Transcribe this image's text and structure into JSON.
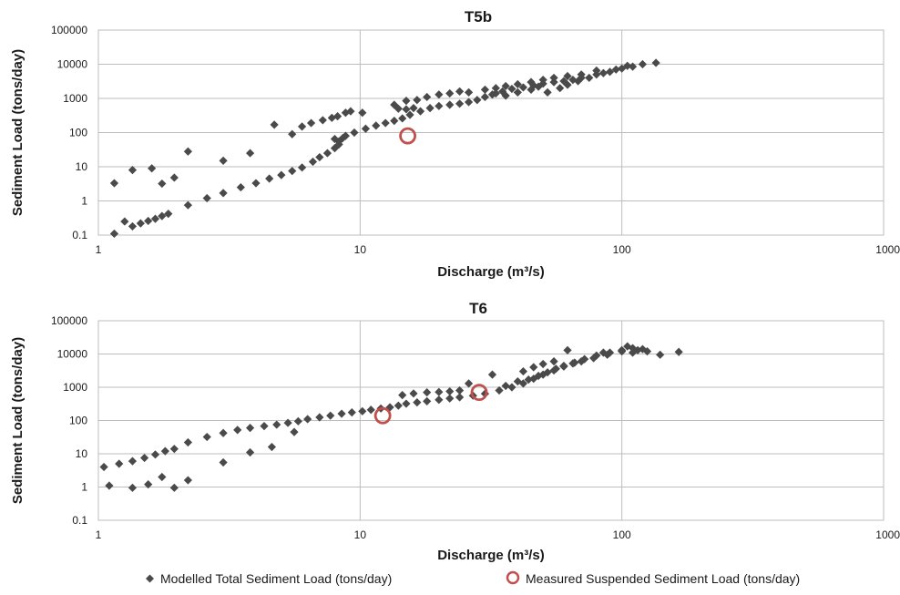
{
  "legend": {
    "modelled_label": "Modelled Total Sediment Load (tons/day)",
    "measured_label": "Measured Suspended Sediment Load (tons/day)"
  },
  "colors": {
    "modelled": "#4a4a4a",
    "measured": "#c0504d",
    "grid": "#bdbdbd"
  },
  "chart_data": [
    {
      "type": "scatter",
      "title": "T5b",
      "xlabel": "Discharge (m³/s)",
      "ylabel": "Sediment Load (tons/day)",
      "x_scale": "log",
      "y_scale": "log",
      "xlim": [
        1,
        1000
      ],
      "ylim": [
        0.1,
        100000
      ],
      "x_ticks": [
        "1",
        "10",
        "100",
        "1000"
      ],
      "y_ticks": [
        "0.1",
        "1",
        "10",
        "100",
        "1000",
        "10000",
        "100000"
      ],
      "grid": true,
      "legend_position": "bottom",
      "series": [
        {
          "name": "Modelled Total Sediment Load (tons/day)",
          "marker": "diamond",
          "points": [
            [
              1.15,
              0.11
            ],
            [
              1.26,
              0.25
            ],
            [
              1.35,
              0.18
            ],
            [
              1.45,
              0.22
            ],
            [
              1.55,
              0.26
            ],
            [
              1.65,
              0.3
            ],
            [
              1.75,
              0.36
            ],
            [
              1.85,
              0.42
            ],
            [
              2.2,
              0.75
            ],
            [
              2.6,
              1.2
            ],
            [
              3.0,
              1.7
            ],
            [
              3.5,
              2.5
            ],
            [
              4.0,
              3.3
            ],
            [
              4.5,
              4.5
            ],
            [
              5.0,
              5.7
            ],
            [
              5.5,
              7.5
            ],
            [
              6.0,
              9.5
            ],
            [
              6.6,
              14
            ],
            [
              7.0,
              19
            ],
            [
              7.5,
              25
            ],
            [
              8.0,
              35
            ],
            [
              8.3,
              55
            ],
            [
              8.8,
              80
            ],
            [
              9.5,
              100
            ],
            [
              10.5,
              130
            ],
            [
              11.5,
              160
            ],
            [
              12.5,
              190
            ],
            [
              13.5,
              220
            ],
            [
              14.5,
              260
            ],
            [
              15.5,
              330
            ],
            [
              17,
              420
            ],
            [
              18.5,
              520
            ],
            [
              20,
              600
            ],
            [
              22,
              650
            ],
            [
              24,
              700
            ],
            [
              26,
              780
            ],
            [
              28,
              900
            ],
            [
              30,
              1100
            ],
            [
              32,
              1300
            ],
            [
              35,
              1600
            ],
            [
              38,
              1900
            ],
            [
              42,
              2100
            ],
            [
              46,
              2400
            ],
            [
              50,
              2700
            ],
            [
              55,
              3000
            ],
            [
              60,
              3200
            ],
            [
              65,
              3500
            ],
            [
              70,
              4000
            ],
            [
              80,
              5000
            ],
            [
              90,
              6000
            ],
            [
              100,
              7500
            ],
            [
              110,
              8500
            ],
            [
              120,
              10000
            ],
            [
              135,
              11000
            ],
            [
              1.15,
              3.3
            ],
            [
              1.35,
              8
            ],
            [
              1.6,
              9
            ],
            [
              1.75,
              3.2
            ],
            [
              1.95,
              4.8
            ],
            [
              2.2,
              28
            ],
            [
              3.0,
              15
            ],
            [
              3.8,
              25
            ],
            [
              4.7,
              170
            ],
            [
              5.5,
              90
            ],
            [
              6.0,
              150
            ],
            [
              6.5,
              190
            ],
            [
              7.2,
              230
            ],
            [
              7.8,
              270
            ],
            [
              8.2,
              300
            ],
            [
              8.8,
              380
            ],
            [
              9.2,
              420
            ],
            [
              10.2,
              380
            ],
            [
              13.5,
              650
            ],
            [
              15,
              850
            ],
            [
              16.5,
              900
            ],
            [
              18,
              1100
            ],
            [
              20,
              1300
            ],
            [
              22,
              1400
            ],
            [
              24,
              1600
            ],
            [
              26,
              1500
            ],
            [
              30,
              1800
            ],
            [
              33,
              2000
            ],
            [
              36,
              2300
            ],
            [
              40,
              2600
            ],
            [
              45,
              3000
            ],
            [
              50,
              3500
            ],
            [
              55,
              4000
            ],
            [
              62,
              4500
            ],
            [
              70,
              5000
            ],
            [
              80,
              6500
            ],
            [
              95,
              7000
            ],
            [
              8,
              65
            ],
            [
              8.3,
              45
            ],
            [
              8.6,
              70
            ],
            [
              14,
              500
            ],
            [
              15,
              480
            ],
            [
              16,
              520
            ],
            [
              33,
              1400
            ],
            [
              36,
              1200
            ],
            [
              40,
              1500
            ],
            [
              45,
              1800
            ],
            [
              48,
              2200
            ],
            [
              52,
              1500
            ],
            [
              58,
              2000
            ],
            [
              62,
              2500
            ],
            [
              68,
              3200
            ],
            [
              75,
              4000
            ],
            [
              85,
              5500
            ],
            [
              105,
              9000
            ]
          ]
        },
        {
          "name": "Measured Suspended Sediment Load (tons/day)",
          "marker": "circle",
          "points": [
            [
              15.2,
              80
            ]
          ]
        }
      ]
    },
    {
      "type": "scatter",
      "title": "T6",
      "xlabel": "Discharge (m³/s)",
      "ylabel": "Sediment Load (tons/day)",
      "x_scale": "log",
      "y_scale": "log",
      "xlim": [
        1,
        1000
      ],
      "ylim": [
        0.1,
        100000
      ],
      "x_ticks": [
        "1",
        "10",
        "100",
        "1000"
      ],
      "y_ticks": [
        "0.1",
        "1",
        "10",
        "100",
        "1000",
        "10000",
        "100000"
      ],
      "grid": true,
      "legend_position": "bottom",
      "series": [
        {
          "name": "Modelled Total Sediment Load (tons/day)",
          "marker": "diamond",
          "points": [
            [
              1.05,
              4
            ],
            [
              1.2,
              5
            ],
            [
              1.35,
              6
            ],
            [
              1.5,
              7.5
            ],
            [
              1.65,
              9.5
            ],
            [
              1.8,
              12
            ],
            [
              1.95,
              14
            ],
            [
              2.2,
              22
            ],
            [
              2.6,
              32
            ],
            [
              3.0,
              42
            ],
            [
              3.4,
              52
            ],
            [
              3.8,
              60
            ],
            [
              4.3,
              68
            ],
            [
              4.8,
              75
            ],
            [
              5.3,
              85
            ],
            [
              5.8,
              95
            ],
            [
              6.3,
              110
            ],
            [
              7.0,
              125
            ],
            [
              7.7,
              140
            ],
            [
              8.5,
              160
            ],
            [
              9.3,
              175
            ],
            [
              10.2,
              190
            ],
            [
              11,
              210
            ],
            [
              12,
              230
            ],
            [
              13,
              250
            ],
            [
              14,
              280
            ],
            [
              15,
              320
            ],
            [
              16.5,
              350
            ],
            [
              18,
              380
            ],
            [
              20,
              420
            ],
            [
              22,
              460
            ],
            [
              24,
              500
            ],
            [
              27,
              560
            ],
            [
              30,
              640
            ],
            [
              34,
              800
            ],
            [
              38,
              1000
            ],
            [
              42,
              1300
            ],
            [
              46,
              1800
            ],
            [
              50,
              2400
            ],
            [
              55,
              3200
            ],
            [
              60,
              4200
            ],
            [
              66,
              5500
            ],
            [
              72,
              7000
            ],
            [
              80,
              9000
            ],
            [
              90,
              11000
            ],
            [
              100,
              13000
            ],
            [
              110,
              15000
            ],
            [
              120,
              14000
            ],
            [
              1.1,
              1.1
            ],
            [
              1.35,
              0.95
            ],
            [
              1.55,
              1.2
            ],
            [
              1.75,
              2
            ],
            [
              1.95,
              0.95
            ],
            [
              2.2,
              1.6
            ],
            [
              3.0,
              5.5
            ],
            [
              3.8,
              11
            ],
            [
              4.6,
              16
            ],
            [
              5.6,
              45
            ],
            [
              14.5,
              580
            ],
            [
              16,
              650
            ],
            [
              18,
              700
            ],
            [
              20,
              720
            ],
            [
              22,
              750
            ],
            [
              24,
              800
            ],
            [
              26,
              1300
            ],
            [
              32,
              2400
            ],
            [
              36,
              1100
            ],
            [
              40,
              1500
            ],
            [
              44,
              1700
            ],
            [
              48,
              2200
            ],
            [
              52,
              2800
            ],
            [
              56,
              3600
            ],
            [
              60,
              4400
            ],
            [
              65,
              5200
            ],
            [
              70,
              6000
            ],
            [
              78,
              7500
            ],
            [
              88,
              9500
            ],
            [
              100,
              12000
            ],
            [
              110,
              11000
            ],
            [
              125,
              12000
            ],
            [
              140,
              9500
            ],
            [
              165,
              11500
            ],
            [
              42,
              3000
            ],
            [
              46,
              4000
            ],
            [
              50,
              5000
            ],
            [
              55,
              6000
            ],
            [
              62,
              13000
            ],
            [
              85,
              11000
            ],
            [
              105,
              17000
            ],
            [
              115,
              13000
            ]
          ]
        },
        {
          "name": "Measured Suspended Sediment Load (tons/day)",
          "marker": "circle",
          "points": [
            [
              12.2,
              140
            ],
            [
              28.5,
              700
            ]
          ]
        }
      ]
    }
  ]
}
